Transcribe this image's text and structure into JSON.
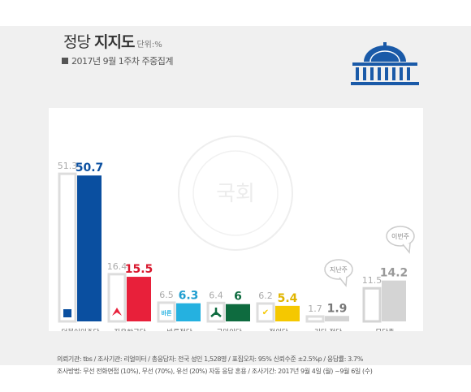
{
  "title": {
    "prefix": "정당",
    "main": "지지도",
    "unit": "단위:%"
  },
  "subtitle": "2017년 9월 1주차 주중집계",
  "chart_data": {
    "type": "bar",
    "categories": [
      "더불어민주당",
      "자유한국당",
      "바른정당",
      "국민의당",
      "정의당",
      "기타 정당",
      "무당층"
    ],
    "series": [
      {
        "values": [
          51.3,
          16.4,
          6.5,
          6.4,
          6.2,
          1.7,
          11.5
        ]
      },
      {
        "values": [
          50.7,
          15.5,
          6.3,
          6.0,
          5.4,
          1.9,
          14.2
        ]
      }
    ],
    "bar_colors": [
      "#0a4fa0",
      "#e8203a",
      "#25b1e0",
      "#0e6b3f",
      "#f5c800",
      "#d4d4d4",
      "#d4d4d4"
    ],
    "label_colors": [
      "#0a4fa0",
      "#d8182e",
      "#1f9ed0",
      "#0e6b3f",
      "#e1b500",
      "#777777",
      "#999999"
    ],
    "bubbles": {
      "previous": "지난주",
      "current": "이번주"
    },
    "party_logos": [
      "민",
      "",
      "바른",
      "",
      "✔",
      "",
      ""
    ],
    "ylim": [
      0,
      55
    ],
    "xlabel": "",
    "ylabel": ""
  },
  "footer": {
    "line1": "의뢰기관: tbs / 조사기관: 리얼미터 / 총응답자: 전국 성인 1,528명 / 표집오차: 95% 신뢰수준 ±2.5%p / 응답률: 3.7%",
    "line2": "조사방법: 무선 전화면접 (10%), 무선 (70%), 유선 (20%) 자동 응답 혼용 / 조사기간: 2017년 9월 4일 (월) ~9월 6일 (수)"
  },
  "watermark": "국회",
  "icons": [
    "national-assembly-icon"
  ]
}
